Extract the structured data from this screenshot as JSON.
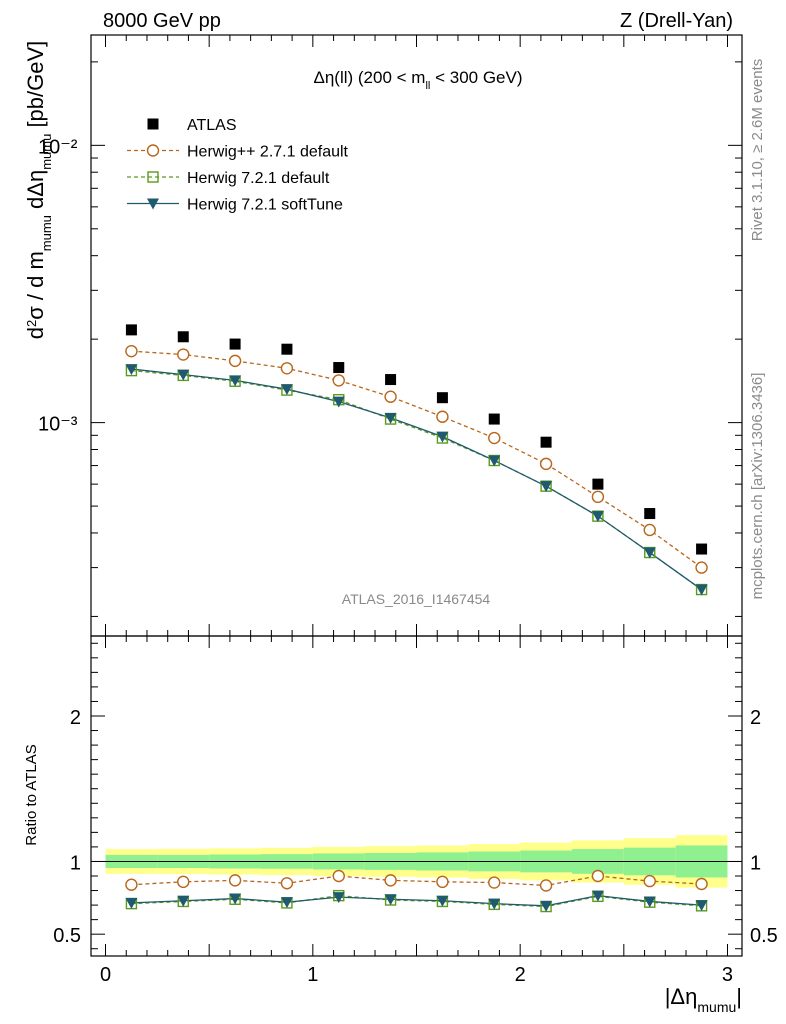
{
  "header": {
    "left": "8000 GeV pp",
    "right": "Z (Drell-Yan)"
  },
  "side_labels": {
    "rivet": "Rivet 3.1.10, ≥ 2.6M events",
    "mcplots": "mcplots.cern.ch [arXiv:1306.3436]"
  },
  "chart_data": [
    {
      "type": "scatter",
      "panel": "main",
      "title": "Δη(ll) (200 < m_ll < 300 GeV)",
      "ylabel": "d²σ / d m_mumu dΔη_mumu [pb/GeV]",
      "watermark": "ATLAS_2016_I1467454",
      "yscale": "log",
      "ylim": [
        0.00017,
        0.025
      ],
      "xlim": [
        -0.07,
        3.07
      ],
      "y_tick_labels": [
        "10⁻³",
        "10⁻²"
      ],
      "legend_position": "top-left",
      "x": [
        0.125,
        0.375,
        0.625,
        0.875,
        1.125,
        1.375,
        1.625,
        1.875,
        2.125,
        2.375,
        2.625,
        2.875
      ],
      "series": [
        {
          "name": "ATLAS",
          "color": "#000000",
          "marker": "filled-square",
          "values": [
            0.00216,
            0.00204,
            0.00192,
            0.00184,
            0.00158,
            0.00143,
            0.00123,
            0.00103,
            0.00085,
            0.0006,
            0.00047,
            0.00035
          ]
        },
        {
          "name": "Herwig++ 2.7.1 default",
          "color": "#b8661b",
          "marker": "open-circle",
          "dash": true,
          "values": [
            0.00181,
            0.00176,
            0.00167,
            0.00157,
            0.00142,
            0.00124,
            0.00105,
            0.00088,
            0.00071,
            0.00054,
            0.00041,
            0.0003
          ]
        },
        {
          "name": "Herwig 7.2.1 default",
          "color": "#5a9a1e",
          "marker": "open-square",
          "dash": true,
          "values": [
            0.00154,
            0.00148,
            0.00141,
            0.00131,
            0.00121,
            0.00103,
            0.00088,
            0.00073,
            0.00059,
            0.00046,
            0.00034,
            0.00025
          ]
        },
        {
          "name": "Herwig 7.2.1 softTune",
          "color": "#1f5a6e",
          "marker": "filled-triangle-down",
          "values": [
            0.00156,
            0.00149,
            0.00142,
            0.00132,
            0.00119,
            0.00104,
            0.00089,
            0.00073,
            0.00059,
            0.00046,
            0.00034,
            0.00025
          ]
        }
      ]
    },
    {
      "type": "scatter",
      "panel": "ratio",
      "ylabel": "Ratio to ATLAS",
      "xlabel": "|Δη_mumu|",
      "ylim": [
        0.35,
        2.55
      ],
      "xlim": [
        -0.07,
        3.07
      ],
      "y_tick_labels": [
        "0.5",
        "1",
        "2"
      ],
      "x_tick_labels": [
        "0",
        "1",
        "2",
        "3"
      ],
      "x": [
        0.125,
        0.375,
        0.625,
        0.875,
        1.125,
        1.375,
        1.625,
        1.875,
        2.125,
        2.375,
        2.625,
        2.875
      ],
      "bands": {
        "x_edges": [
          0,
          0.25,
          0.5,
          0.75,
          1.0,
          1.25,
          1.5,
          1.75,
          2.0,
          2.25,
          2.5,
          2.75,
          3.0
        ],
        "inner": [
          0.045,
          0.045,
          0.048,
          0.05,
          0.055,
          0.058,
          0.062,
          0.068,
          0.075,
          0.085,
          0.095,
          0.11
        ],
        "outer": [
          0.085,
          0.087,
          0.09,
          0.094,
          0.1,
          0.105,
          0.11,
          0.12,
          0.13,
          0.145,
          0.16,
          0.18
        ],
        "inner_color": "#8ef08e",
        "outer_color": "#ffff8c"
      },
      "series": [
        {
          "name": "Herwig++ 2.7.1 default",
          "color": "#b8661b",
          "marker": "open-circle",
          "dash": true,
          "values": [
            0.84,
            0.86,
            0.87,
            0.85,
            0.9,
            0.87,
            0.86,
            0.855,
            0.835,
            0.9,
            0.865,
            0.845
          ]
        },
        {
          "name": "Herwig 7.2.1 default",
          "color": "#5a9a1e",
          "marker": "open-square",
          "dash": true,
          "values": [
            0.71,
            0.725,
            0.74,
            0.715,
            0.765,
            0.735,
            0.725,
            0.705,
            0.69,
            0.76,
            0.72,
            0.695
          ]
        },
        {
          "name": "Herwig 7.2.1 softTune",
          "color": "#1f5a6e",
          "marker": "filled-triangle-down",
          "values": [
            0.715,
            0.73,
            0.745,
            0.72,
            0.755,
            0.74,
            0.73,
            0.71,
            0.695,
            0.765,
            0.725,
            0.7
          ]
        }
      ]
    }
  ]
}
